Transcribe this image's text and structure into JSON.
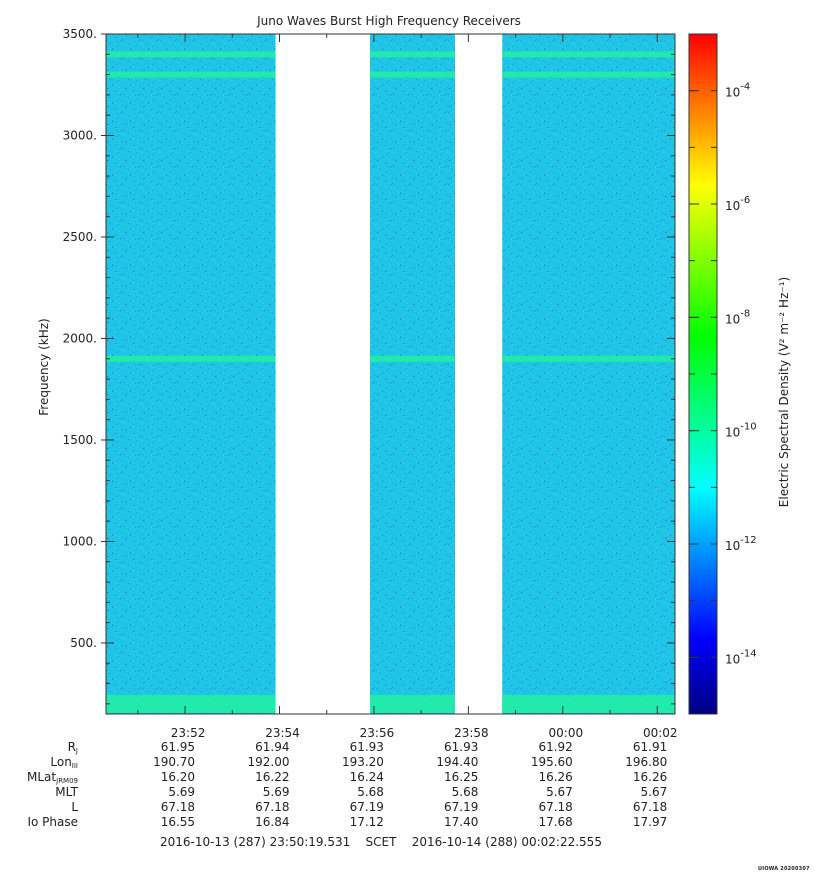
{
  "chart_data": {
    "type": "heatmap",
    "title": "Juno Waves Burst High Frequency Receivers",
    "ylabel": "Frequency (kHz)",
    "yticks": [
      "3500.",
      "3000.",
      "2500.",
      "2000.",
      "1500.",
      "1000.",
      "500."
    ],
    "ylim": [
      150,
      3500
    ],
    "x_ticks": [
      "23:52",
      "23:54",
      "23:56",
      "23:58",
      "00:00",
      "00:02"
    ],
    "data_segments": [
      [
        "23:50:19",
        "23:53:55"
      ],
      [
        "23:55:55",
        "23:57:43"
      ],
      [
        "23:58:43",
        "00:02:22"
      ]
    ],
    "bright_bands_khz": [
      3400,
      3300,
      1900,
      200
    ],
    "colorbar": {
      "label": "Electric Spectral Density (V² m⁻² Hz⁻¹)",
      "ticks": [
        "10-4",
        "10-6",
        "10-8",
        "10-10",
        "10-12",
        "10-14"
      ],
      "colors": [
        "#000080",
        "#0000ff",
        "#0080ff",
        "#00ffff",
        "#00ff80",
        "#00ff00",
        "#80ff00",
        "#ffff00",
        "#ff8000",
        "#ff0000"
      ]
    },
    "background_color": "#1fc5e6"
  },
  "ephemeris": {
    "rows": [
      {
        "label": "R",
        "sub": "J",
        "values": [
          "61.95",
          "61.94",
          "61.93",
          "61.93",
          "61.92",
          "61.91"
        ]
      },
      {
        "label": "Lon",
        "sub": "III",
        "values": [
          "190.70",
          "192.00",
          "193.20",
          "194.40",
          "195.60",
          "196.80"
        ]
      },
      {
        "label": "MLat",
        "sub": "JRM09",
        "values": [
          "16.20",
          "16.22",
          "16.24",
          "16.25",
          "16.26",
          "16.26"
        ]
      },
      {
        "label": "MLT",
        "sub": "",
        "values": [
          "5.69",
          "5.69",
          "5.68",
          "5.68",
          "5.67",
          "5.67"
        ]
      },
      {
        "label": "L",
        "sub": "",
        "values": [
          "67.18",
          "67.18",
          "67.19",
          "67.19",
          "67.18",
          "67.18"
        ]
      },
      {
        "label": "Io Phase",
        "sub": "",
        "values": [
          "16.55",
          "16.84",
          "17.12",
          "17.40",
          "17.68",
          "17.97"
        ]
      }
    ]
  },
  "footer": {
    "start": "2016-10-13 (287) 23:50:19.531",
    "mid": "SCET",
    "end": "2016-10-14 (288) 00:02:22.555"
  },
  "stamp": "UIOWA 20200307"
}
